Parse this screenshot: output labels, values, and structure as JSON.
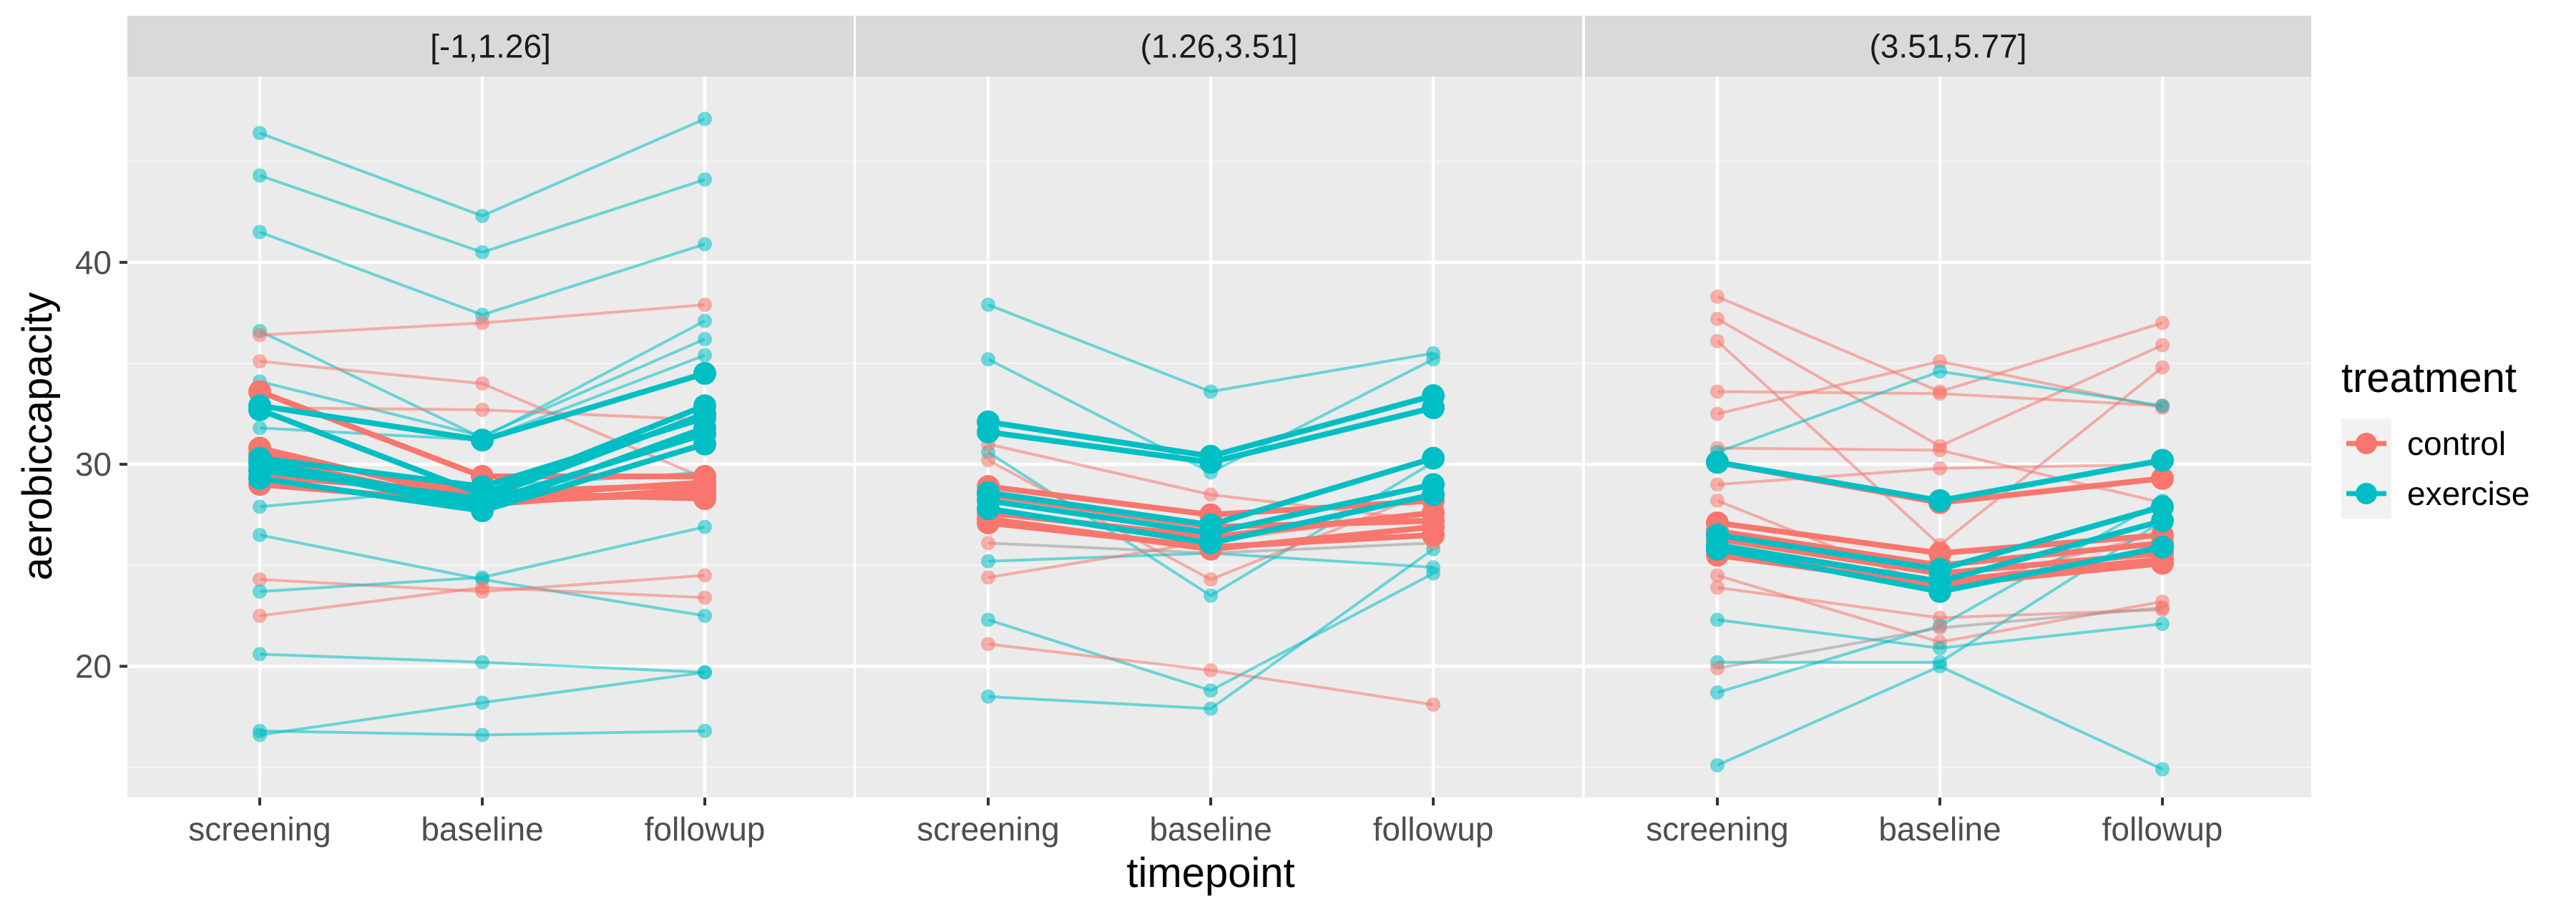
{
  "chart_data": {
    "type": "line",
    "title": "",
    "xlabel": "timepoint",
    "ylabel": "aerobiccapacity",
    "categories": [
      "screening",
      "baseline",
      "followup"
    ],
    "y_ticks": [
      20,
      30,
      40
    ],
    "ylim": [
      13.5,
      49.2
    ],
    "grid": true,
    "legend": {
      "title": "treatment",
      "position": "right",
      "entries": [
        {
          "name": "control",
          "color": "#F8766D"
        },
        {
          "name": "exercise",
          "color": "#00BFC4"
        }
      ]
    },
    "panels": [
      {
        "label": "[-1,1.26]",
        "series": [
          {
            "name": "exercise",
            "values": [
              46.4,
              42.3,
              47.1
            ]
          },
          {
            "name": "exercise",
            "values": [
              44.3,
              40.5,
              44.1
            ]
          },
          {
            "name": "exercise",
            "values": [
              41.5,
              37.4,
              40.9
            ]
          },
          {
            "name": "exercise",
            "values": [
              36.6,
              31.3,
              37.1
            ]
          },
          {
            "name": "control",
            "values": [
              36.4,
              37.0,
              37.9
            ]
          },
          {
            "name": "control",
            "values": [
              35.1,
              34.0,
              29.3
            ]
          },
          {
            "name": "exercise",
            "values": [
              34.1,
              31.4,
              36.2
            ]
          },
          {
            "name": "control",
            "values": [
              32.8,
              32.7,
              32.2
            ]
          },
          {
            "name": "exercise",
            "values": [
              31.8,
              31.2,
              35.4
            ]
          },
          {
            "name": "exercise",
            "values": [
              27.9,
              28.9,
              29.6
            ]
          },
          {
            "name": "exercise",
            "values": [
              26.5,
              24.3,
              22.5
            ]
          },
          {
            "name": "control",
            "values": [
              24.3,
              23.7,
              24.5
            ]
          },
          {
            "name": "exercise",
            "values": [
              23.7,
              24.4,
              26.9
            ]
          },
          {
            "name": "control",
            "values": [
              22.5,
              23.9,
              23.4
            ]
          },
          {
            "name": "exercise",
            "values": [
              20.6,
              20.2,
              19.7
            ]
          },
          {
            "name": "exercise",
            "values": [
              16.8,
              16.6,
              16.8
            ]
          },
          {
            "name": "exercise",
            "values": [
              16.6,
              18.2,
              19.7
            ]
          },
          {
            "name": "control",
            "values": [
              33.6,
              29.4,
              29.4
            ],
            "highlight": true
          },
          {
            "name": "control",
            "values": [
              30.8,
              28.2,
              28.5
            ],
            "highlight": true
          },
          {
            "name": "control",
            "values": [
              30.3,
              28.0,
              28.8
            ],
            "highlight": true
          },
          {
            "name": "control",
            "values": [
              29.7,
              28.4,
              29.1
            ],
            "highlight": true
          },
          {
            "name": "control",
            "values": [
              29.4,
              28.6,
              29.0
            ],
            "highlight": true
          },
          {
            "name": "control",
            "values": [
              29.0,
              28.1,
              28.6
            ],
            "highlight": true
          },
          {
            "name": "control",
            "values": [
              30.5,
              28.6,
              28.3
            ],
            "highlight": true
          },
          {
            "name": "exercise",
            "values": [
              32.9,
              31.2,
              34.5
            ],
            "highlight": true
          },
          {
            "name": "exercise",
            "values": [
              32.7,
              28.5,
              32.9
            ],
            "highlight": true
          },
          {
            "name": "exercise",
            "values": [
              30.3,
              28.9,
              32.3
            ],
            "highlight": true
          },
          {
            "name": "exercise",
            "values": [
              30.0,
              27.8,
              31.8
            ],
            "highlight": true
          },
          {
            "name": "exercise",
            "values": [
              29.7,
              28.3,
              32.5
            ],
            "highlight": true
          },
          {
            "name": "exercise",
            "values": [
              29.3,
              27.7,
              31.0
            ],
            "highlight": true
          },
          {
            "name": "exercise",
            "values": [
              30.1,
              28.1,
              31.5
            ],
            "highlight": true
          }
        ]
      },
      {
        "label": "(1.26,3.51]",
        "series": [
          {
            "name": "exercise",
            "values": [
              37.9,
              33.6,
              35.5
            ]
          },
          {
            "name": "exercise",
            "values": [
              35.2,
              29.6,
              35.2
            ]
          },
          {
            "name": "exercise",
            "values": [
              30.6,
              23.5,
              30.1
            ]
          },
          {
            "name": "control",
            "values": [
              31.0,
              28.5,
              27.2
            ]
          },
          {
            "name": "control",
            "values": [
              30.2,
              24.3,
              28.7
            ]
          },
          {
            "name": "exercise",
            "values": [
              25.2,
              25.6,
              24.9
            ]
          },
          {
            "name": "control",
            "values": [
              24.4,
              26.2,
              27.6
            ]
          },
          {
            "name": "exercise",
            "values": [
              22.3,
              18.8,
              24.6
            ]
          },
          {
            "name": "control",
            "values": [
              21.1,
              19.8,
              18.1
            ]
          },
          {
            "name": "exercise",
            "values": [
              18.5,
              17.9,
              25.8
            ]
          },
          {
            "name": "control",
            "values": [
              26.1,
              25.6,
              26.1
            ],
            "grey": true
          },
          {
            "name": "control",
            "values": [
              28.9,
              27.5,
              28.2
            ],
            "highlight": true
          },
          {
            "name": "control",
            "values": [
              28.5,
              26.9,
              27.2
            ],
            "highlight": true
          },
          {
            "name": "control",
            "values": [
              27.6,
              26.4,
              27.6
            ],
            "highlight": true
          },
          {
            "name": "control",
            "values": [
              27.3,
              25.8,
              26.9
            ],
            "highlight": true
          },
          {
            "name": "control",
            "values": [
              27.1,
              25.9,
              26.5
            ],
            "highlight": true
          },
          {
            "name": "exercise",
            "values": [
              32.1,
              30.4,
              33.4
            ],
            "highlight": true
          },
          {
            "name": "exercise",
            "values": [
              31.6,
              30.1,
              32.8
            ],
            "highlight": true
          },
          {
            "name": "exercise",
            "values": [
              28.6,
              27.0,
              30.3
            ],
            "highlight": true
          },
          {
            "name": "exercise",
            "values": [
              28.2,
              26.6,
              29.0
            ],
            "highlight": true
          },
          {
            "name": "exercise",
            "values": [
              27.8,
              26.1,
              28.5
            ],
            "highlight": true
          }
        ]
      },
      {
        "label": "(3.51,5.77]",
        "series": [
          {
            "name": "control",
            "values": [
              38.3,
              33.6,
              37.0
            ]
          },
          {
            "name": "control",
            "values": [
              37.2,
              30.9,
              35.9
            ]
          },
          {
            "name": "control",
            "values": [
              36.1,
              26.0,
              34.8
            ]
          },
          {
            "name": "control",
            "values": [
              33.6,
              33.5,
              32.9
            ]
          },
          {
            "name": "control",
            "values": [
              32.5,
              35.1,
              32.8
            ]
          },
          {
            "name": "control",
            "values": [
              30.8,
              30.7,
              28.1
            ]
          },
          {
            "name": "control",
            "values": [
              29.0,
              29.8,
              30.0
            ]
          },
          {
            "name": "exercise",
            "values": [
              30.6,
              34.6,
              32.9
            ]
          },
          {
            "name": "control",
            "values": [
              28.2,
              23.8,
              26.6
            ]
          },
          {
            "name": "control",
            "values": [
              24.5,
              21.2,
              23.2
            ]
          },
          {
            "name": "control",
            "values": [
              23.9,
              22.4,
              22.8
            ]
          },
          {
            "name": "exercise",
            "values": [
              22.3,
              20.9,
              22.1
            ]
          },
          {
            "name": "exercise",
            "values": [
              20.2,
              20.2,
              27.2
            ]
          },
          {
            "name": "exercise",
            "values": [
              18.7,
              22.0,
              28.2
            ]
          },
          {
            "name": "exercise",
            "values": [
              15.1,
              20.0,
              14.9
            ]
          },
          {
            "name": "control",
            "values": [
              19.9,
              21.9,
              22.9
            ],
            "grey": true
          },
          {
            "name": "control",
            "values": [
              30.1,
              28.1,
              29.3
            ],
            "highlight": true
          },
          {
            "name": "control",
            "values": [
              27.1,
              25.6,
              26.5
            ],
            "highlight": true
          },
          {
            "name": "control",
            "values": [
              26.7,
              25.0,
              26.1
            ],
            "highlight": true
          },
          {
            "name": "control",
            "values": [
              26.3,
              24.6,
              25.6
            ],
            "highlight": true
          },
          {
            "name": "control",
            "values": [
              25.9,
              24.2,
              25.3
            ],
            "highlight": true
          },
          {
            "name": "control",
            "values": [
              25.5,
              24.0,
              25.1
            ],
            "highlight": true
          },
          {
            "name": "exercise",
            "values": [
              30.1,
              28.2,
              30.2
            ],
            "highlight": true
          },
          {
            "name": "exercise",
            "values": [
              26.5,
              24.8,
              27.9
            ],
            "highlight": true
          },
          {
            "name": "exercise",
            "values": [
              26.0,
              24.2,
              27.2
            ],
            "highlight": true
          },
          {
            "name": "exercise",
            "values": [
              25.8,
              23.7,
              25.9
            ],
            "highlight": true
          }
        ]
      }
    ]
  }
}
